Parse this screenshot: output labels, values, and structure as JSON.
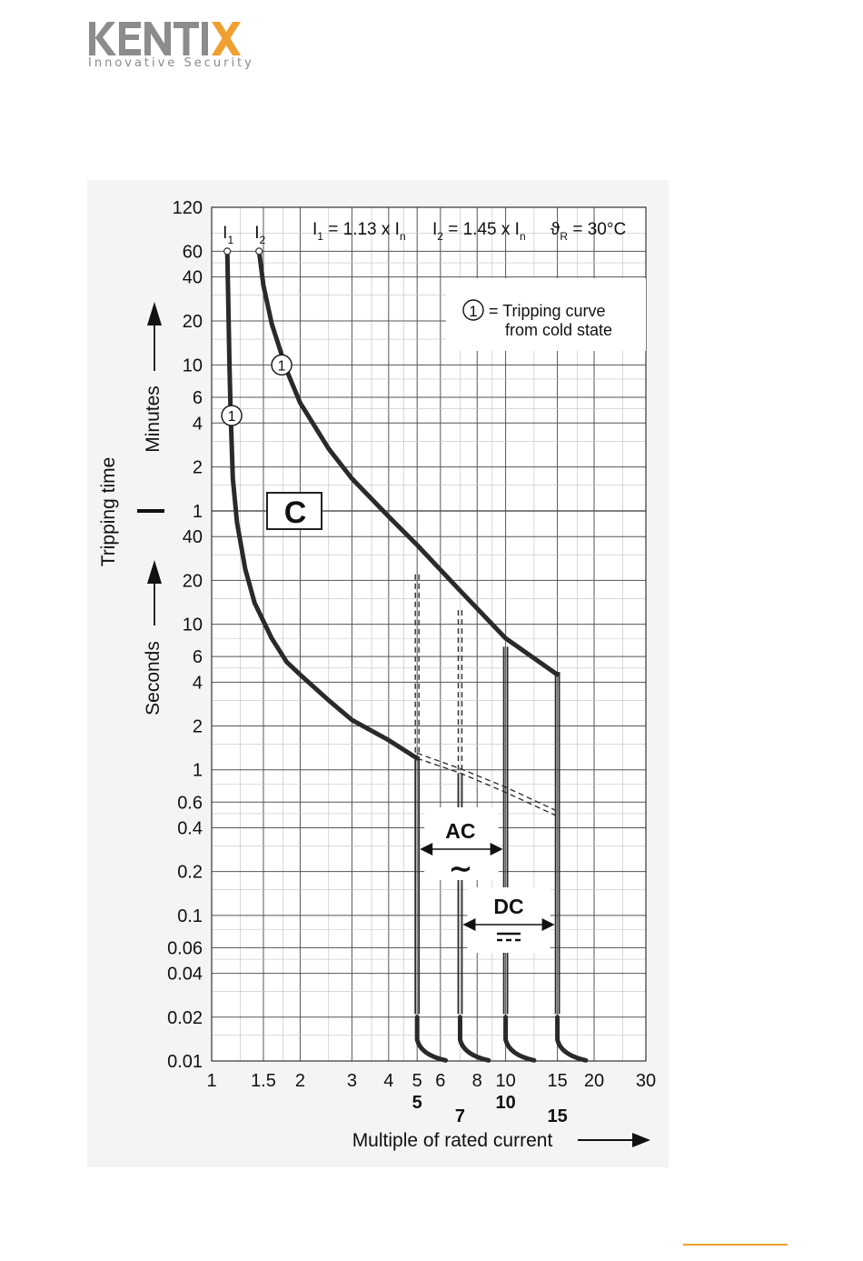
{
  "logo": {
    "name": "KENTIX",
    "tagline": "Innovative Security"
  },
  "chart_data": {
    "type": "line",
    "title": "",
    "scale": {
      "x": "log",
      "y": "log"
    },
    "xlabel": "Multiple of rated current",
    "ylabel": "Tripping time",
    "ylabel_minutes": "Minutes",
    "ylabel_seconds": "Seconds",
    "formula": {
      "i1": {
        "sym": "I",
        "sub": "1",
        "eq": " = 1.13 x I",
        "sub2": "n"
      },
      "i2": {
        "sym": "I",
        "sub": "2",
        "eq": " = 1.45 x I",
        "sub2": "n"
      },
      "temp": {
        "sym": "ϑ",
        "sub": "R",
        "eq": " = 30°C"
      }
    },
    "marker_labels": [
      {
        "sym": "I",
        "sub": "1",
        "x": 1.13
      },
      {
        "sym": "I",
        "sub": "2",
        "x": 1.45
      }
    ],
    "legend": {
      "symbol": "1",
      "line1": "= Tripping curve",
      "line2": "from cold state"
    },
    "class_label": "C",
    "x_ticks": [
      1,
      1.5,
      2,
      3,
      4,
      5,
      6,
      8,
      10,
      15,
      20,
      30
    ],
    "x_tick_labels": [
      "1",
      "1.5",
      "2",
      "3",
      "4",
      "5",
      "6",
      "8",
      "10",
      "15",
      "20",
      "30"
    ],
    "x_bold_ticks": [
      5,
      7,
      10,
      15
    ],
    "x_bold_labels": [
      "5",
      "7",
      "10",
      "15"
    ],
    "y_ticks_seconds": [
      0.01,
      0.02,
      0.04,
      0.06,
      0.1,
      0.2,
      0.4,
      0.6,
      1,
      2,
      4,
      6,
      10,
      20,
      40
    ],
    "y_ticks_seconds_labels": [
      "0.01",
      "0.02",
      "0.04",
      "0.06",
      "0.1",
      "0.2",
      "0.4",
      "0.6",
      "1",
      "2",
      "4",
      "6",
      "10",
      "20",
      "40"
    ],
    "y_ticks_minutes": [
      1,
      2,
      4,
      6,
      10,
      20,
      40,
      60,
      120
    ],
    "y_ticks_minutes_labels": [
      "1",
      "2",
      "4",
      "6",
      "10",
      "20",
      "40",
      "60",
      "120"
    ],
    "series": [
      {
        "role": "lower",
        "points_seconds": [
          [
            1.13,
            3600
          ],
          [
            1.14,
            1500
          ],
          [
            1.15,
            600
          ],
          [
            1.16,
            280
          ],
          [
            1.18,
            100
          ],
          [
            1.22,
            50
          ],
          [
            1.3,
            24
          ],
          [
            1.4,
            14
          ],
          [
            1.6,
            8
          ],
          [
            1.8,
            5.5
          ],
          [
            2,
            4.5
          ],
          [
            2.5,
            3
          ],
          [
            3,
            2.2
          ],
          [
            4,
            1.6
          ],
          [
            5,
            1.2
          ]
        ]
      },
      {
        "role": "upper",
        "points_seconds": [
          [
            1.45,
            3600
          ],
          [
            1.5,
            2100
          ],
          [
            1.6,
            1150
          ],
          [
            1.8,
            550
          ],
          [
            2,
            330
          ],
          [
            2.5,
            160
          ],
          [
            3,
            100
          ],
          [
            4,
            55
          ],
          [
            5,
            35
          ],
          [
            7,
            17
          ],
          [
            10,
            8
          ],
          [
            15,
            4.5
          ]
        ]
      }
    ],
    "instant_trip_AC": [
      5,
      10
    ],
    "instant_trip_DC": [
      7,
      15
    ],
    "band_labels": {
      "ac": "AC",
      "ac_symbol": "∼",
      "dc": "DC",
      "dc_symbol": "⎓"
    }
  },
  "footer": {
    "accent": "#f0a030"
  }
}
